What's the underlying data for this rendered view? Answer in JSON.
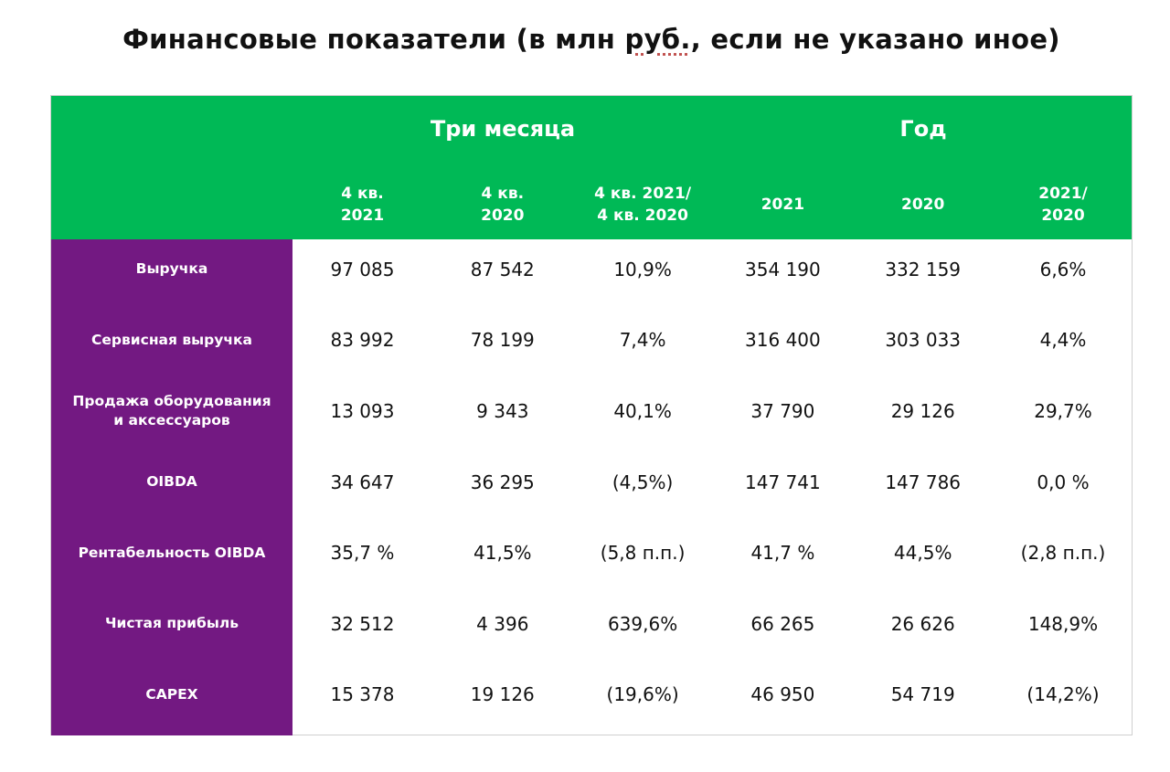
{
  "title": {
    "before": "Финансовые показатели (в млн ",
    "underlined": "руб.",
    "after": ", если не указано иное)"
  },
  "header": {
    "groups": [
      "Три месяца",
      "Год"
    ],
    "columns": [
      [
        "4 кв.",
        "2021"
      ],
      [
        "4 кв.",
        "2020"
      ],
      [
        "4 кв. 2021/",
        "4 кв. 2020"
      ],
      [
        "2021"
      ],
      [
        "2020"
      ],
      [
        "2021/",
        "2020"
      ]
    ]
  },
  "rows": [
    {
      "label": [
        "Выручка"
      ],
      "values": [
        "97 085",
        "87 542",
        "10,9%",
        "354 190",
        "332 159",
        "6,6%"
      ]
    },
    {
      "label": [
        "Сервисная выручка"
      ],
      "values": [
        "83 992",
        "78 199",
        "7,4%",
        "316 400",
        "303 033",
        "4,4%"
      ]
    },
    {
      "label": [
        "Продажа оборудования",
        "и аксессуаров"
      ],
      "values": [
        "13 093",
        "9 343",
        "40,1%",
        "37 790",
        "29 126",
        "29,7%"
      ]
    },
    {
      "label": [
        "OIBDA"
      ],
      "values": [
        "34 647",
        "36 295",
        "(4,5%)",
        "147 741",
        "147 786",
        "0,0 %"
      ]
    },
    {
      "label": [
        "Рентабельность OIBDA"
      ],
      "values": [
        "35,7 %",
        "41,5%",
        "(5,8 п.п.)",
        "41,7 %",
        "44,5%",
        "(2,8 п.п.)"
      ]
    },
    {
      "label": [
        "Чистая прибыль"
      ],
      "values": [
        "32 512",
        "4 396",
        "639,6%",
        "66 265",
        "26 626",
        "148,9%"
      ]
    },
    {
      "label": [
        "CAPEX"
      ],
      "values": [
        "15 378",
        "19 126",
        "(19,6%)",
        "46 950",
        "54 719",
        "(14,2%)"
      ]
    }
  ],
  "colors": {
    "green": "#00b956",
    "purple": "#731982"
  }
}
